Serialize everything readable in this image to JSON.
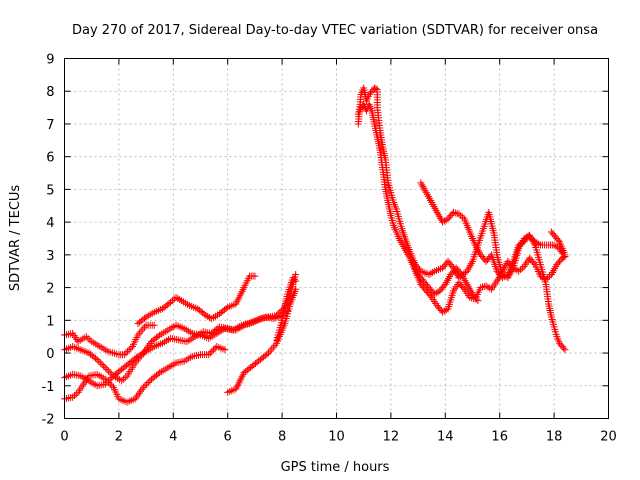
{
  "chart_data": {
    "type": "scatter",
    "title": "Day 270 of 2017, Sidereal Day-to-day VTEC variation (SDTVAR) for receiver onsa",
    "xlabel": "GPS time / hours",
    "ylabel": "SDTVAR / TECUs",
    "xlim": [
      0,
      20
    ],
    "ylim": [
      -2,
      9
    ],
    "xticks": [
      0,
      2,
      4,
      6,
      8,
      10,
      12,
      14,
      16,
      18,
      20
    ],
    "yticks": [
      -2,
      -1,
      0,
      1,
      2,
      3,
      4,
      5,
      6,
      7,
      8,
      9
    ],
    "grid": true,
    "marker": "plus",
    "color": "#ff0000",
    "series": [
      {
        "points": [
          [
            0.0,
            0.55
          ],
          [
            0.3,
            0.6
          ],
          [
            0.5,
            0.35
          ],
          [
            0.8,
            0.5
          ],
          [
            1.0,
            0.35
          ],
          [
            1.3,
            0.2
          ],
          [
            1.6,
            0.05
          ],
          [
            2.0,
            -0.05
          ],
          [
            2.2,
            -0.05
          ],
          [
            2.5,
            0.2
          ],
          [
            2.7,
            0.55
          ],
          [
            3.0,
            0.85
          ],
          [
            3.3,
            0.85
          ]
        ]
      },
      {
        "points": [
          [
            2.7,
            0.9
          ],
          [
            3.0,
            1.1
          ],
          [
            3.3,
            1.25
          ],
          [
            3.6,
            1.35
          ],
          [
            3.9,
            1.55
          ],
          [
            4.1,
            1.7
          ],
          [
            4.3,
            1.6
          ],
          [
            4.6,
            1.45
          ],
          [
            4.9,
            1.35
          ],
          [
            5.2,
            1.15
          ],
          [
            5.4,
            1.05
          ],
          [
            5.7,
            1.2
          ],
          [
            6.0,
            1.4
          ],
          [
            6.3,
            1.5
          ],
          [
            6.6,
            2.0
          ],
          [
            6.8,
            2.35
          ],
          [
            7.0,
            2.35
          ]
        ]
      },
      {
        "points": [
          [
            0.0,
            0.1
          ],
          [
            0.3,
            0.2
          ],
          [
            0.6,
            0.1
          ],
          [
            0.9,
            0.0
          ],
          [
            1.2,
            -0.2
          ],
          [
            1.5,
            -0.45
          ],
          [
            1.8,
            -0.7
          ],
          [
            2.1,
            -0.85
          ],
          [
            2.3,
            -0.7
          ],
          [
            2.6,
            -0.3
          ],
          [
            2.9,
            0.0
          ],
          [
            3.2,
            0.35
          ],
          [
            3.5,
            0.55
          ],
          [
            3.8,
            0.7
          ],
          [
            4.1,
            0.85
          ],
          [
            4.4,
            0.75
          ],
          [
            4.7,
            0.6
          ],
          [
            5.0,
            0.55
          ],
          [
            5.3,
            0.45
          ],
          [
            5.6,
            0.6
          ],
          [
            5.9,
            0.75
          ],
          [
            6.2,
            0.7
          ],
          [
            6.5,
            0.85
          ],
          [
            6.8,
            0.9
          ],
          [
            7.1,
            1.0
          ],
          [
            7.4,
            1.1
          ],
          [
            7.7,
            1.05
          ],
          [
            8.0,
            1.15
          ],
          [
            8.2,
            1.3
          ]
        ]
      },
      {
        "points": [
          [
            0.0,
            -0.75
          ],
          [
            0.3,
            -0.65
          ],
          [
            0.6,
            -0.7
          ],
          [
            0.9,
            -0.85
          ],
          [
            1.2,
            -1.0
          ],
          [
            1.5,
            -0.95
          ],
          [
            1.8,
            -0.7
          ],
          [
            2.1,
            -0.5
          ],
          [
            2.4,
            -0.3
          ],
          [
            2.7,
            -0.1
          ],
          [
            3.0,
            0.05
          ],
          [
            3.3,
            0.2
          ],
          [
            3.6,
            0.3
          ],
          [
            3.9,
            0.45
          ],
          [
            4.2,
            0.4
          ],
          [
            4.5,
            0.35
          ],
          [
            4.8,
            0.5
          ],
          [
            5.1,
            0.65
          ],
          [
            5.4,
            0.6
          ],
          [
            5.7,
            0.8
          ],
          [
            6.0,
            0.75
          ],
          [
            6.3,
            0.7
          ],
          [
            6.6,
            0.85
          ],
          [
            6.9,
            0.95
          ],
          [
            7.2,
            1.05
          ],
          [
            7.5,
            1.1
          ],
          [
            7.8,
            1.15
          ],
          [
            8.1,
            1.4
          ],
          [
            8.3,
            1.8
          ],
          [
            8.5,
            2.4
          ]
        ]
      },
      {
        "points": [
          [
            0.0,
            -1.4
          ],
          [
            0.3,
            -1.35
          ],
          [
            0.5,
            -1.2
          ],
          [
            0.7,
            -0.95
          ],
          [
            0.9,
            -0.7
          ],
          [
            1.2,
            -0.65
          ],
          [
            1.5,
            -0.8
          ],
          [
            1.8,
            -1.05
          ],
          [
            2.0,
            -1.4
          ],
          [
            2.3,
            -1.5
          ],
          [
            2.6,
            -1.4
          ],
          [
            2.9,
            -1.05
          ],
          [
            3.2,
            -0.8
          ],
          [
            3.5,
            -0.6
          ],
          [
            3.8,
            -0.45
          ],
          [
            4.1,
            -0.3
          ],
          [
            4.4,
            -0.25
          ],
          [
            4.7,
            -0.1
          ],
          [
            5.0,
            -0.05
          ],
          [
            5.3,
            -0.05
          ],
          [
            5.6,
            0.2
          ],
          [
            5.9,
            0.1
          ]
        ]
      },
      {
        "points": [
          [
            6.0,
            -1.2
          ],
          [
            6.3,
            -1.1
          ],
          [
            6.6,
            -0.6
          ],
          [
            6.9,
            -0.4
          ],
          [
            7.2,
            -0.2
          ],
          [
            7.5,
            0.0
          ],
          [
            7.8,
            0.3
          ],
          [
            8.1,
            0.9
          ],
          [
            8.3,
            1.5
          ],
          [
            8.5,
            1.95
          ]
        ]
      },
      {
        "points": [
          [
            7.8,
            0.4
          ],
          [
            8.0,
            1.0
          ],
          [
            8.2,
            1.8
          ],
          [
            8.4,
            2.3
          ],
          [
            8.5,
            2.2
          ]
        ]
      },
      {
        "points": [
          [
            10.8,
            7.0
          ],
          [
            10.9,
            7.9
          ],
          [
            11.0,
            8.1
          ],
          [
            11.1,
            7.7
          ],
          [
            11.2,
            7.9
          ],
          [
            11.4,
            8.1
          ],
          [
            11.5,
            8.05
          ],
          [
            11.5,
            7.5
          ],
          [
            11.6,
            6.8
          ],
          [
            11.7,
            6.3
          ],
          [
            11.8,
            5.9
          ],
          [
            11.9,
            5.2
          ],
          [
            12.0,
            4.9
          ],
          [
            12.1,
            4.6
          ],
          [
            12.2,
            4.4
          ],
          [
            12.3,
            4.1
          ],
          [
            12.4,
            3.8
          ],
          [
            12.5,
            3.55
          ],
          [
            12.7,
            3.1
          ],
          [
            12.9,
            2.7
          ],
          [
            13.1,
            2.5
          ],
          [
            13.4,
            2.4
          ],
          [
            13.6,
            2.5
          ],
          [
            13.9,
            2.6
          ],
          [
            14.1,
            2.8
          ],
          [
            14.3,
            2.6
          ],
          [
            14.5,
            2.3
          ],
          [
            14.8,
            2.5
          ],
          [
            15.0,
            2.8
          ],
          [
            15.2,
            3.3
          ],
          [
            15.4,
            3.8
          ],
          [
            15.6,
            4.3
          ],
          [
            15.8,
            3.6
          ],
          [
            15.9,
            3.0
          ],
          [
            16.1,
            2.4
          ],
          [
            16.3,
            2.3
          ],
          [
            16.5,
            2.6
          ],
          [
            16.7,
            3.2
          ],
          [
            16.9,
            3.5
          ],
          [
            17.1,
            3.55
          ],
          [
            17.3,
            3.4
          ],
          [
            17.5,
            3.3
          ],
          [
            17.8,
            3.3
          ],
          [
            18.0,
            3.3
          ],
          [
            18.2,
            3.2
          ],
          [
            18.3,
            3.05
          ]
        ]
      },
      {
        "points": [
          [
            10.8,
            7.3
          ],
          [
            10.9,
            7.5
          ],
          [
            11.0,
            7.6
          ],
          [
            11.1,
            7.4
          ],
          [
            11.2,
            7.6
          ],
          [
            11.3,
            7.4
          ],
          [
            11.4,
            7.0
          ],
          [
            11.5,
            6.6
          ],
          [
            11.6,
            6.2
          ],
          [
            11.7,
            5.6
          ],
          [
            11.8,
            5.0
          ],
          [
            11.9,
            4.6
          ],
          [
            12.0,
            4.2
          ],
          [
            12.1,
            3.9
          ],
          [
            12.2,
            3.7
          ],
          [
            12.3,
            3.5
          ],
          [
            12.5,
            3.2
          ],
          [
            12.7,
            2.9
          ],
          [
            12.9,
            2.5
          ],
          [
            13.1,
            2.1
          ],
          [
            13.3,
            1.9
          ],
          [
            13.5,
            1.7
          ],
          [
            13.7,
            1.45
          ],
          [
            13.9,
            1.25
          ],
          [
            14.1,
            1.35
          ],
          [
            14.3,
            1.9
          ],
          [
            14.5,
            2.15
          ],
          [
            14.7,
            1.95
          ],
          [
            14.9,
            1.7
          ],
          [
            15.1,
            1.65
          ],
          [
            15.3,
            2.0
          ],
          [
            15.5,
            2.05
          ],
          [
            15.7,
            1.95
          ],
          [
            15.9,
            2.2
          ],
          [
            16.1,
            2.5
          ],
          [
            16.3,
            2.8
          ],
          [
            16.5,
            2.6
          ],
          [
            16.7,
            2.5
          ],
          [
            16.9,
            2.65
          ],
          [
            17.1,
            2.9
          ],
          [
            17.3,
            2.7
          ],
          [
            17.5,
            2.35
          ],
          [
            17.7,
            2.25
          ],
          [
            17.9,
            2.4
          ],
          [
            18.1,
            2.7
          ],
          [
            18.3,
            2.9
          ],
          [
            18.4,
            2.95
          ]
        ]
      },
      {
        "points": [
          [
            12.8,
            2.8
          ],
          [
            13.0,
            2.4
          ],
          [
            13.2,
            2.2
          ],
          [
            13.4,
            2.0
          ],
          [
            13.6,
            1.8
          ],
          [
            13.8,
            1.9
          ],
          [
            14.0,
            2.1
          ],
          [
            14.2,
            2.4
          ],
          [
            14.4,
            2.6
          ],
          [
            14.6,
            2.4
          ],
          [
            14.8,
            2.1
          ],
          [
            15.0,
            1.8
          ],
          [
            15.2,
            1.6
          ]
        ]
      },
      {
        "points": [
          [
            13.1,
            5.2
          ],
          [
            13.3,
            4.9
          ],
          [
            13.5,
            4.6
          ],
          [
            13.7,
            4.3
          ],
          [
            13.9,
            4.0
          ],
          [
            14.1,
            4.1
          ],
          [
            14.3,
            4.3
          ],
          [
            14.5,
            4.25
          ],
          [
            14.7,
            4.1
          ],
          [
            14.9,
            3.7
          ],
          [
            15.1,
            3.3
          ],
          [
            15.3,
            3.0
          ],
          [
            15.5,
            2.8
          ],
          [
            15.7,
            3.0
          ],
          [
            15.9,
            2.5
          ],
          [
            16.1,
            2.3
          ],
          [
            16.3,
            2.4
          ],
          [
            16.5,
            2.8
          ],
          [
            16.7,
            3.3
          ],
          [
            16.9,
            3.4
          ],
          [
            17.0,
            3.55
          ],
          [
            17.1,
            3.6
          ],
          [
            17.3,
            3.3
          ],
          [
            17.5,
            2.7
          ],
          [
            17.7,
            2.1
          ],
          [
            17.8,
            1.5
          ],
          [
            17.9,
            1.1
          ],
          [
            18.0,
            0.8
          ],
          [
            18.1,
            0.5
          ],
          [
            18.2,
            0.3
          ],
          [
            18.4,
            0.1
          ]
        ]
      },
      {
        "points": [
          [
            17.9,
            3.7
          ],
          [
            18.0,
            3.6
          ],
          [
            18.1,
            3.5
          ],
          [
            18.2,
            3.4
          ],
          [
            18.3,
            3.2
          ],
          [
            18.4,
            3.0
          ]
        ]
      }
    ]
  }
}
